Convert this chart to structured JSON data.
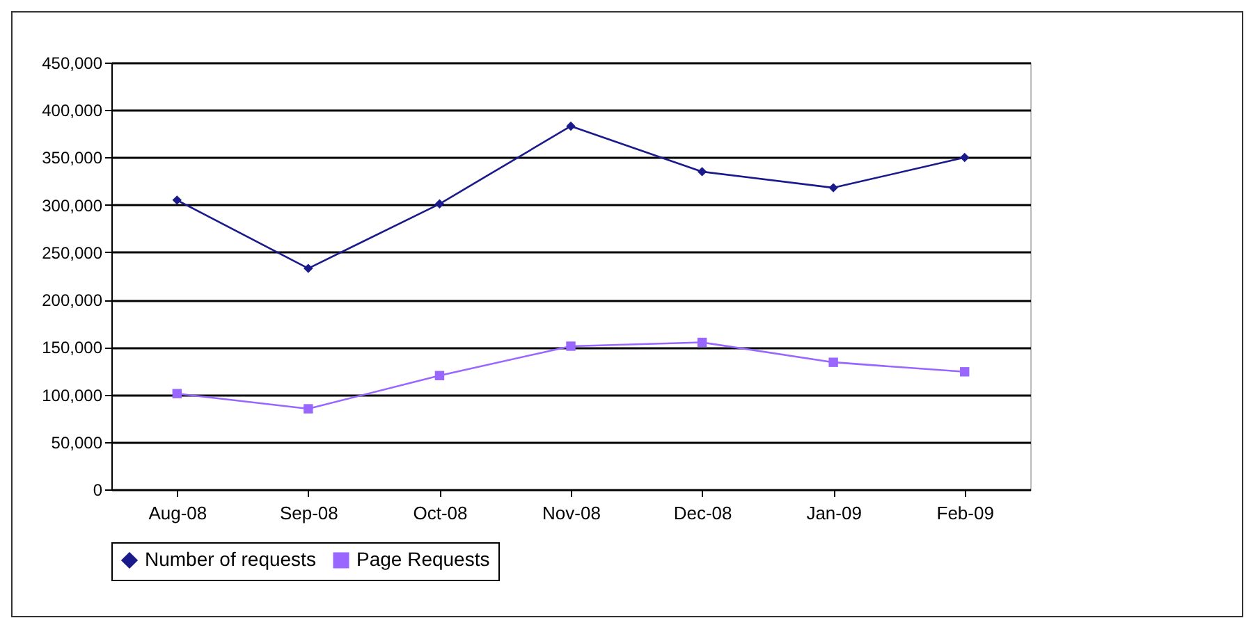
{
  "chart_data": {
    "type": "line",
    "categories": [
      "Aug-08",
      "Sep-08",
      "Oct-08",
      "Nov-08",
      "Dec-08",
      "Jan-09",
      "Feb-09"
    ],
    "series": [
      {
        "name": "Number of requests",
        "color": "#1a1a8c",
        "marker": "diamond",
        "values": [
          305000,
          233000,
          301000,
          383000,
          335000,
          318000,
          350000
        ]
      },
      {
        "name": "Page Requests",
        "color": "#9966ff",
        "marker": "square",
        "values": [
          101000,
          85000,
          120000,
          151000,
          155000,
          134000,
          124000
        ]
      }
    ],
    "ylim": [
      0,
      450000
    ],
    "yticks": [
      {
        "value": 0,
        "label": "0"
      },
      {
        "value": 50000,
        "label": "50,000"
      },
      {
        "value": 100000,
        "label": "100,000"
      },
      {
        "value": 150000,
        "label": "150,000"
      },
      {
        "value": 200000,
        "label": "200,000"
      },
      {
        "value": 250000,
        "label": "250,000"
      },
      {
        "value": 300000,
        "label": "300,000"
      },
      {
        "value": 350000,
        "label": "350,000"
      },
      {
        "value": 400000,
        "label": "400,000"
      },
      {
        "value": 450000,
        "label": "450,000"
      }
    ],
    "grid": "y",
    "legend": "bottom",
    "line_style": "solid"
  }
}
